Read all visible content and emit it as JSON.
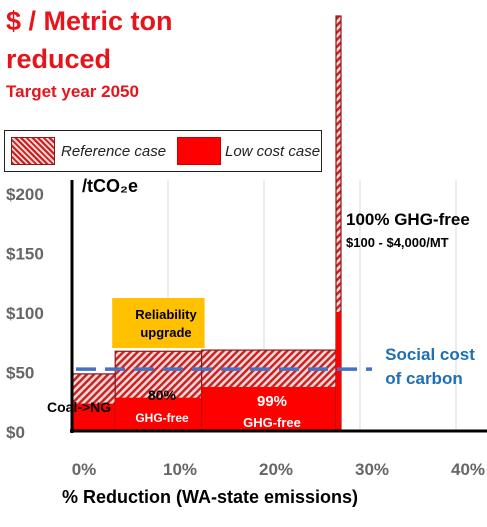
{
  "title": {
    "line1": "$ / Metric ton",
    "line2": "reduced",
    "line3": "Target year 2050"
  },
  "legend": [
    {
      "label": "Reference case",
      "pattern": "hatched"
    },
    {
      "label": "Low cost case",
      "pattern": "solid"
    }
  ],
  "colors": {
    "red": "#ff0000",
    "hatch": "#c8201f",
    "gold": "#ffc000",
    "blue": "#4472c4",
    "darkblue": "#1f6fb5"
  },
  "chart_data": {
    "type": "bar",
    "ylabel": "/tCO₂e",
    "xlabel": "% Reduction (WA-state emissions)",
    "ylim": [
      0,
      200
    ],
    "xlim": [
      0,
      40
    ],
    "y_ticks": [
      {
        "value": 0,
        "label": "$0"
      },
      {
        "value": 50,
        "label": "$50"
      },
      {
        "value": 100,
        "label": "$100"
      },
      {
        "value": 150,
        "label": "$150"
      },
      {
        "value": 200,
        "label": "$200"
      }
    ],
    "x_ticks": [
      {
        "value": 0,
        "label": "0%"
      },
      {
        "value": 10,
        "label": "10%"
      },
      {
        "value": 20,
        "label": "20%"
      },
      {
        "value": 30,
        "label": "30%"
      },
      {
        "value": 40,
        "label": "40%"
      }
    ],
    "steps": [
      {
        "x0": 0,
        "x1": 4.5,
        "reference": 48,
        "low_cost": 23,
        "label": "Coal->NG"
      },
      {
        "x0": 4.5,
        "x1": 13.5,
        "reference": 67,
        "low_cost": 28,
        "label": "80%\nGHG-free"
      },
      {
        "x0": 13.5,
        "x1": 27.5,
        "reference": 68,
        "low_cost": 37,
        "label": "99%\nGHG-free"
      },
      {
        "x0": 27.5,
        "x1": 28.0,
        "reference": 4000,
        "low_cost": 100,
        "label": "100% GHG-free\n$100 - $4,000/MT"
      }
    ],
    "reliability_upgrade": {
      "label": "Reliability\nupgrade",
      "x0": 4.5,
      "x1": 13.5
    },
    "social_cost_of_carbon": {
      "value": 52,
      "label": "Social cost\nof carbon"
    },
    "annotations": {
      "coal_ng": "Coal->NG",
      "s80_top": "80%",
      "s80_bottom": "GHG-free",
      "s99_top": "99%",
      "s99_bottom": "GHG-free",
      "s100_top": "100% GHG-free",
      "s100_bottom": "$100 - $4,000/MT",
      "reliability_top": "Reliability",
      "reliability_bottom": "upgrade",
      "scc_top": "Social cost",
      "scc_bottom": "of carbon"
    }
  }
}
